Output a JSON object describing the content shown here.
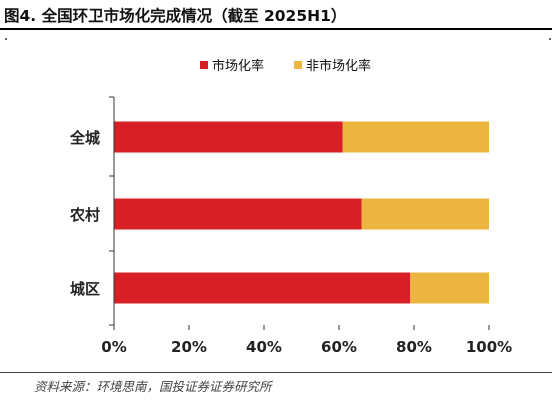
{
  "title": "图4. 全国环卫市场化完成情况（截至 2025H1）",
  "source": "资料来源：环境思南，国投证券证券研究所",
  "colors": {
    "market": "#d71f26",
    "non_market": "#ebb53f"
  },
  "chart_data": {
    "type": "bar",
    "orientation": "horizontal",
    "stacked": true,
    "categories": [
      "全城",
      "农村",
      "城区"
    ],
    "series": [
      {
        "name": "市场化率",
        "color": "#d71f26",
        "values": [
          61,
          66,
          79
        ]
      },
      {
        "name": "非市场化率",
        "color": "#ebb53f",
        "values": [
          39,
          34,
          21
        ]
      }
    ],
    "xlim": [
      0,
      100
    ],
    "xticks": [
      "0%",
      "20%",
      "40%",
      "60%",
      "80%",
      "100%"
    ],
    "legend_position": "top",
    "grid": false
  }
}
